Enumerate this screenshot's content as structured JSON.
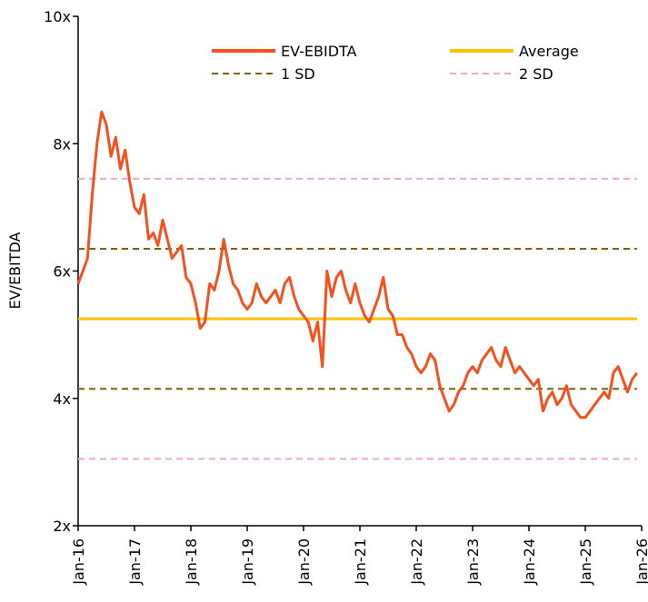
{
  "chart_data": {
    "type": "line",
    "y_axis_label": "EV/EBITDA",
    "x": [
      "2016-01",
      "2016-02",
      "2016-03",
      "2016-04",
      "2016-05",
      "2016-06",
      "2016-07",
      "2016-08",
      "2016-09",
      "2016-10",
      "2016-11",
      "2016-12",
      "2017-01",
      "2017-02",
      "2017-03",
      "2017-04",
      "2017-05",
      "2017-06",
      "2017-07",
      "2017-08",
      "2017-09",
      "2017-10",
      "2017-11",
      "2017-12",
      "2018-01",
      "2018-02",
      "2018-03",
      "2018-04",
      "2018-05",
      "2018-06",
      "2018-07",
      "2018-08",
      "2018-09",
      "2018-10",
      "2018-11",
      "2018-12",
      "2019-01",
      "2019-02",
      "2019-03",
      "2019-04",
      "2019-05",
      "2019-06",
      "2019-07",
      "2019-08",
      "2019-09",
      "2019-10",
      "2019-11",
      "2019-12",
      "2020-01",
      "2020-02",
      "2020-03",
      "2020-04",
      "2020-05",
      "2020-06",
      "2020-07",
      "2020-08",
      "2020-09",
      "2020-10",
      "2020-11",
      "2020-12",
      "2021-01",
      "2021-02",
      "2021-03",
      "2021-04",
      "2021-05",
      "2021-06",
      "2021-07",
      "2021-08",
      "2021-09",
      "2021-10",
      "2021-11",
      "2021-12",
      "2022-01",
      "2022-02",
      "2022-03",
      "2022-04",
      "2022-05",
      "2022-06",
      "2022-07",
      "2022-08",
      "2022-09",
      "2022-10",
      "2022-11",
      "2022-12",
      "2023-01",
      "2023-02",
      "2023-03",
      "2023-04",
      "2023-05",
      "2023-06",
      "2023-07",
      "2023-08",
      "2023-09",
      "2023-10",
      "2023-11",
      "2023-12",
      "2024-01",
      "2024-02",
      "2024-03",
      "2024-04",
      "2024-05",
      "2024-06",
      "2024-07",
      "2024-08",
      "2024-09",
      "2024-10",
      "2024-11",
      "2024-12",
      "2025-01",
      "2025-02",
      "2025-03",
      "2025-04",
      "2025-05",
      "2025-06",
      "2025-07",
      "2025-08",
      "2025-09",
      "2025-10",
      "2025-11",
      "2025-12"
    ],
    "series": [
      {
        "name": "EV-EBIDTA",
        "color": "#f4511e",
        "values": [
          5.8,
          6.0,
          6.2,
          7.2,
          8.0,
          8.5,
          8.3,
          7.8,
          8.1,
          7.6,
          7.9,
          7.4,
          7.0,
          6.9,
          7.2,
          6.5,
          6.6,
          6.4,
          6.8,
          6.5,
          6.2,
          6.3,
          6.4,
          5.9,
          5.8,
          5.5,
          5.1,
          5.2,
          5.8,
          5.7,
          6.0,
          6.5,
          6.1,
          5.8,
          5.7,
          5.5,
          5.4,
          5.5,
          5.8,
          5.6,
          5.5,
          5.6,
          5.7,
          5.5,
          5.8,
          5.9,
          5.6,
          5.4,
          5.3,
          5.2,
          4.9,
          5.2,
          4.5,
          6.0,
          5.6,
          5.9,
          6.0,
          5.7,
          5.5,
          5.8,
          5.5,
          5.3,
          5.2,
          5.4,
          5.6,
          5.9,
          5.4,
          5.3,
          5.0,
          5.0,
          4.8,
          4.7,
          4.5,
          4.4,
          4.5,
          4.7,
          4.6,
          4.2,
          4.0,
          3.8,
          3.9,
          4.1,
          4.2,
          4.4,
          4.5,
          4.4,
          4.6,
          4.7,
          4.8,
          4.6,
          4.5,
          4.8,
          4.6,
          4.4,
          4.5,
          4.4,
          4.3,
          4.2,
          4.3,
          3.8,
          4.0,
          4.1,
          3.9,
          4.0,
          4.2,
          3.9,
          3.8,
          3.7,
          3.7,
          3.8,
          3.9,
          4.0,
          4.1,
          4.0,
          4.4,
          4.5,
          4.3,
          4.1,
          4.3,
          4.4
        ]
      }
    ],
    "reference_lines": [
      {
        "name": "Average",
        "color": "#ffc000",
        "dash": false,
        "levels": [
          5.25
        ]
      },
      {
        "name": "1 SD",
        "color": "#7f6000",
        "dash": true,
        "levels": [
          6.35,
          4.15
        ]
      },
      {
        "name": "2 SD",
        "color": "#f4a6c0",
        "dash": true,
        "levels": [
          7.45,
          3.05
        ]
      }
    ],
    "xlim": [
      "2016-01",
      "2026-01"
    ],
    "xticks": [
      {
        "value": "2016-01",
        "label": "Jan-16"
      },
      {
        "value": "2017-01",
        "label": "Jan-17"
      },
      {
        "value": "2018-01",
        "label": "Jan-18"
      },
      {
        "value": "2019-01",
        "label": "Jan-19"
      },
      {
        "value": "2020-01",
        "label": "Jan-20"
      },
      {
        "value": "2021-01",
        "label": "Jan-21"
      },
      {
        "value": "2022-01",
        "label": "Jan-22"
      },
      {
        "value": "2023-01",
        "label": "Jan-23"
      },
      {
        "value": "2024-01",
        "label": "Jan-24"
      },
      {
        "value": "2025-01",
        "label": "Jan-25"
      },
      {
        "value": "2026-01",
        "label": "Jan-26"
      }
    ],
    "ylim": [
      2,
      10
    ],
    "yticks": [
      {
        "value": 2,
        "label": "2x"
      },
      {
        "value": 4,
        "label": "4x"
      },
      {
        "value": 6,
        "label": "6x"
      },
      {
        "value": 8,
        "label": "8x"
      },
      {
        "value": 10,
        "label": "10x"
      }
    ],
    "grid": false
  }
}
